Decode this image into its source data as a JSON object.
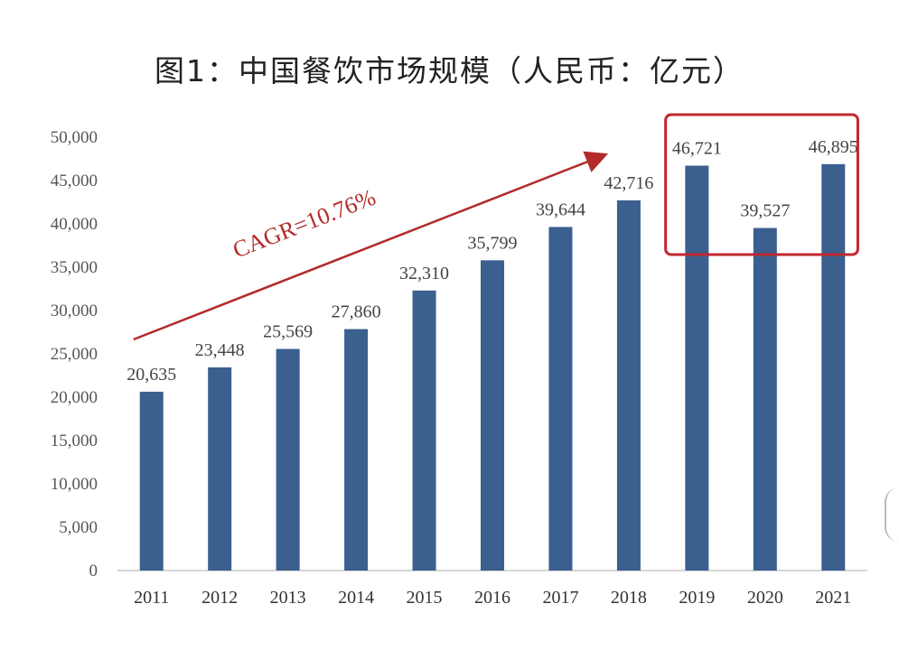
{
  "chart_data": {
    "type": "bar",
    "title": "图1：中国餐饮市场规模（人民币：亿元）",
    "categories": [
      "2011",
      "2012",
      "2013",
      "2014",
      "2015",
      "2016",
      "2017",
      "2018",
      "2019",
      "2020",
      "2021"
    ],
    "values": [
      20635,
      23448,
      25569,
      27860,
      32310,
      35799,
      39644,
      42716,
      46721,
      39527,
      46895
    ],
    "value_labels": [
      "20,635",
      "23,448",
      "25,569",
      "27,860",
      "32,310",
      "35,799",
      "39,644",
      "42,716",
      "46,721",
      "39,527",
      "46,895"
    ],
    "y_ticks": [
      "0",
      "5,000",
      "10,000",
      "15,000",
      "20,000",
      "25,000",
      "30,000",
      "35,000",
      "40,000",
      "45,000",
      "50,000"
    ],
    "ylim": [
      0,
      50000
    ],
    "xlabel": "",
    "ylabel": "",
    "bar_color": "#3b5f8e",
    "annotations": {
      "cagr_text": "CAGR=10.76%",
      "arrow_color": "#b22a2a",
      "highlight_box_color": "#c0282d",
      "highlight_categories": [
        "2019",
        "2020",
        "2021"
      ]
    }
  }
}
